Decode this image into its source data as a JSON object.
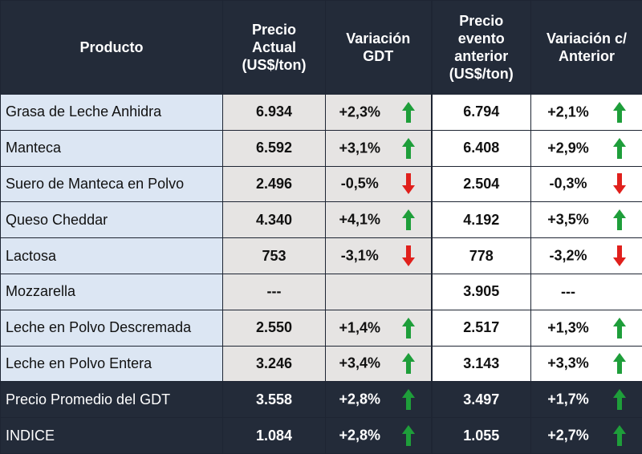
{
  "headers": {
    "product": "Producto",
    "price_current": [
      "Precio",
      "Actual",
      "(US$/ton)"
    ],
    "variation_gdt": [
      "Variación",
      "GDT"
    ],
    "price_previous": [
      "Precio",
      "evento",
      "anterior",
      "(US$/ton)"
    ],
    "variation_prev": [
      "Variación c/",
      "Anterior"
    ]
  },
  "colors": {
    "up": "#1e9e3a",
    "down": "#e0201c",
    "header_bg": "#232b39"
  },
  "rows": [
    {
      "product": "Grasa de Leche Anhidra",
      "price": "6.934",
      "var_gdt": "+2,3%",
      "arrow_gdt": "up",
      "prev_price": "6.794",
      "var_prev": "+2,1%",
      "arrow_prev": "up"
    },
    {
      "product": "Manteca",
      "price": "6.592",
      "var_gdt": "+3,1%",
      "arrow_gdt": "up",
      "prev_price": "6.408",
      "var_prev": "+2,9%",
      "arrow_prev": "up"
    },
    {
      "product": "Suero de Manteca en Polvo",
      "price": "2.496",
      "var_gdt": "-0,5%",
      "arrow_gdt": "down",
      "prev_price": "2.504",
      "var_prev": "-0,3%",
      "arrow_prev": "down"
    },
    {
      "product": "Queso Cheddar",
      "price": "4.340",
      "var_gdt": "+4,1%",
      "arrow_gdt": "up",
      "prev_price": "4.192",
      "var_prev": "+3,5%",
      "arrow_prev": "up"
    },
    {
      "product": "Lactosa",
      "price": "753",
      "var_gdt": "-3,1%",
      "arrow_gdt": "down",
      "prev_price": "778",
      "var_prev": "-3,2%",
      "arrow_prev": "down"
    },
    {
      "product": "Mozzarella",
      "price": "---",
      "var_gdt": "",
      "arrow_gdt": "",
      "prev_price": "3.905",
      "var_prev": "---",
      "arrow_prev": ""
    },
    {
      "product": "Leche en Polvo Descremada",
      "price": "2.550",
      "var_gdt": "+1,4%",
      "arrow_gdt": "up",
      "prev_price": "2.517",
      "var_prev": "+1,3%",
      "arrow_prev": "up"
    },
    {
      "product": "Leche en Polvo Entera",
      "price": "3.246",
      "var_gdt": "+3,4%",
      "arrow_gdt": "up",
      "prev_price": "3.143",
      "var_prev": "+3,3%",
      "arrow_prev": "up"
    },
    {
      "product": "Precio Promedio del GDT",
      "price": "3.558",
      "var_gdt": "+2,8%",
      "arrow_gdt": "up",
      "prev_price": "3.497",
      "var_prev": "+1,7%",
      "arrow_prev": "up"
    },
    {
      "product": "INDICE",
      "price": "1.084",
      "var_gdt": "+2,8%",
      "arrow_gdt": "up",
      "prev_price": "1.055",
      "var_prev": "+2,7%",
      "arrow_prev": "up"
    }
  ]
}
